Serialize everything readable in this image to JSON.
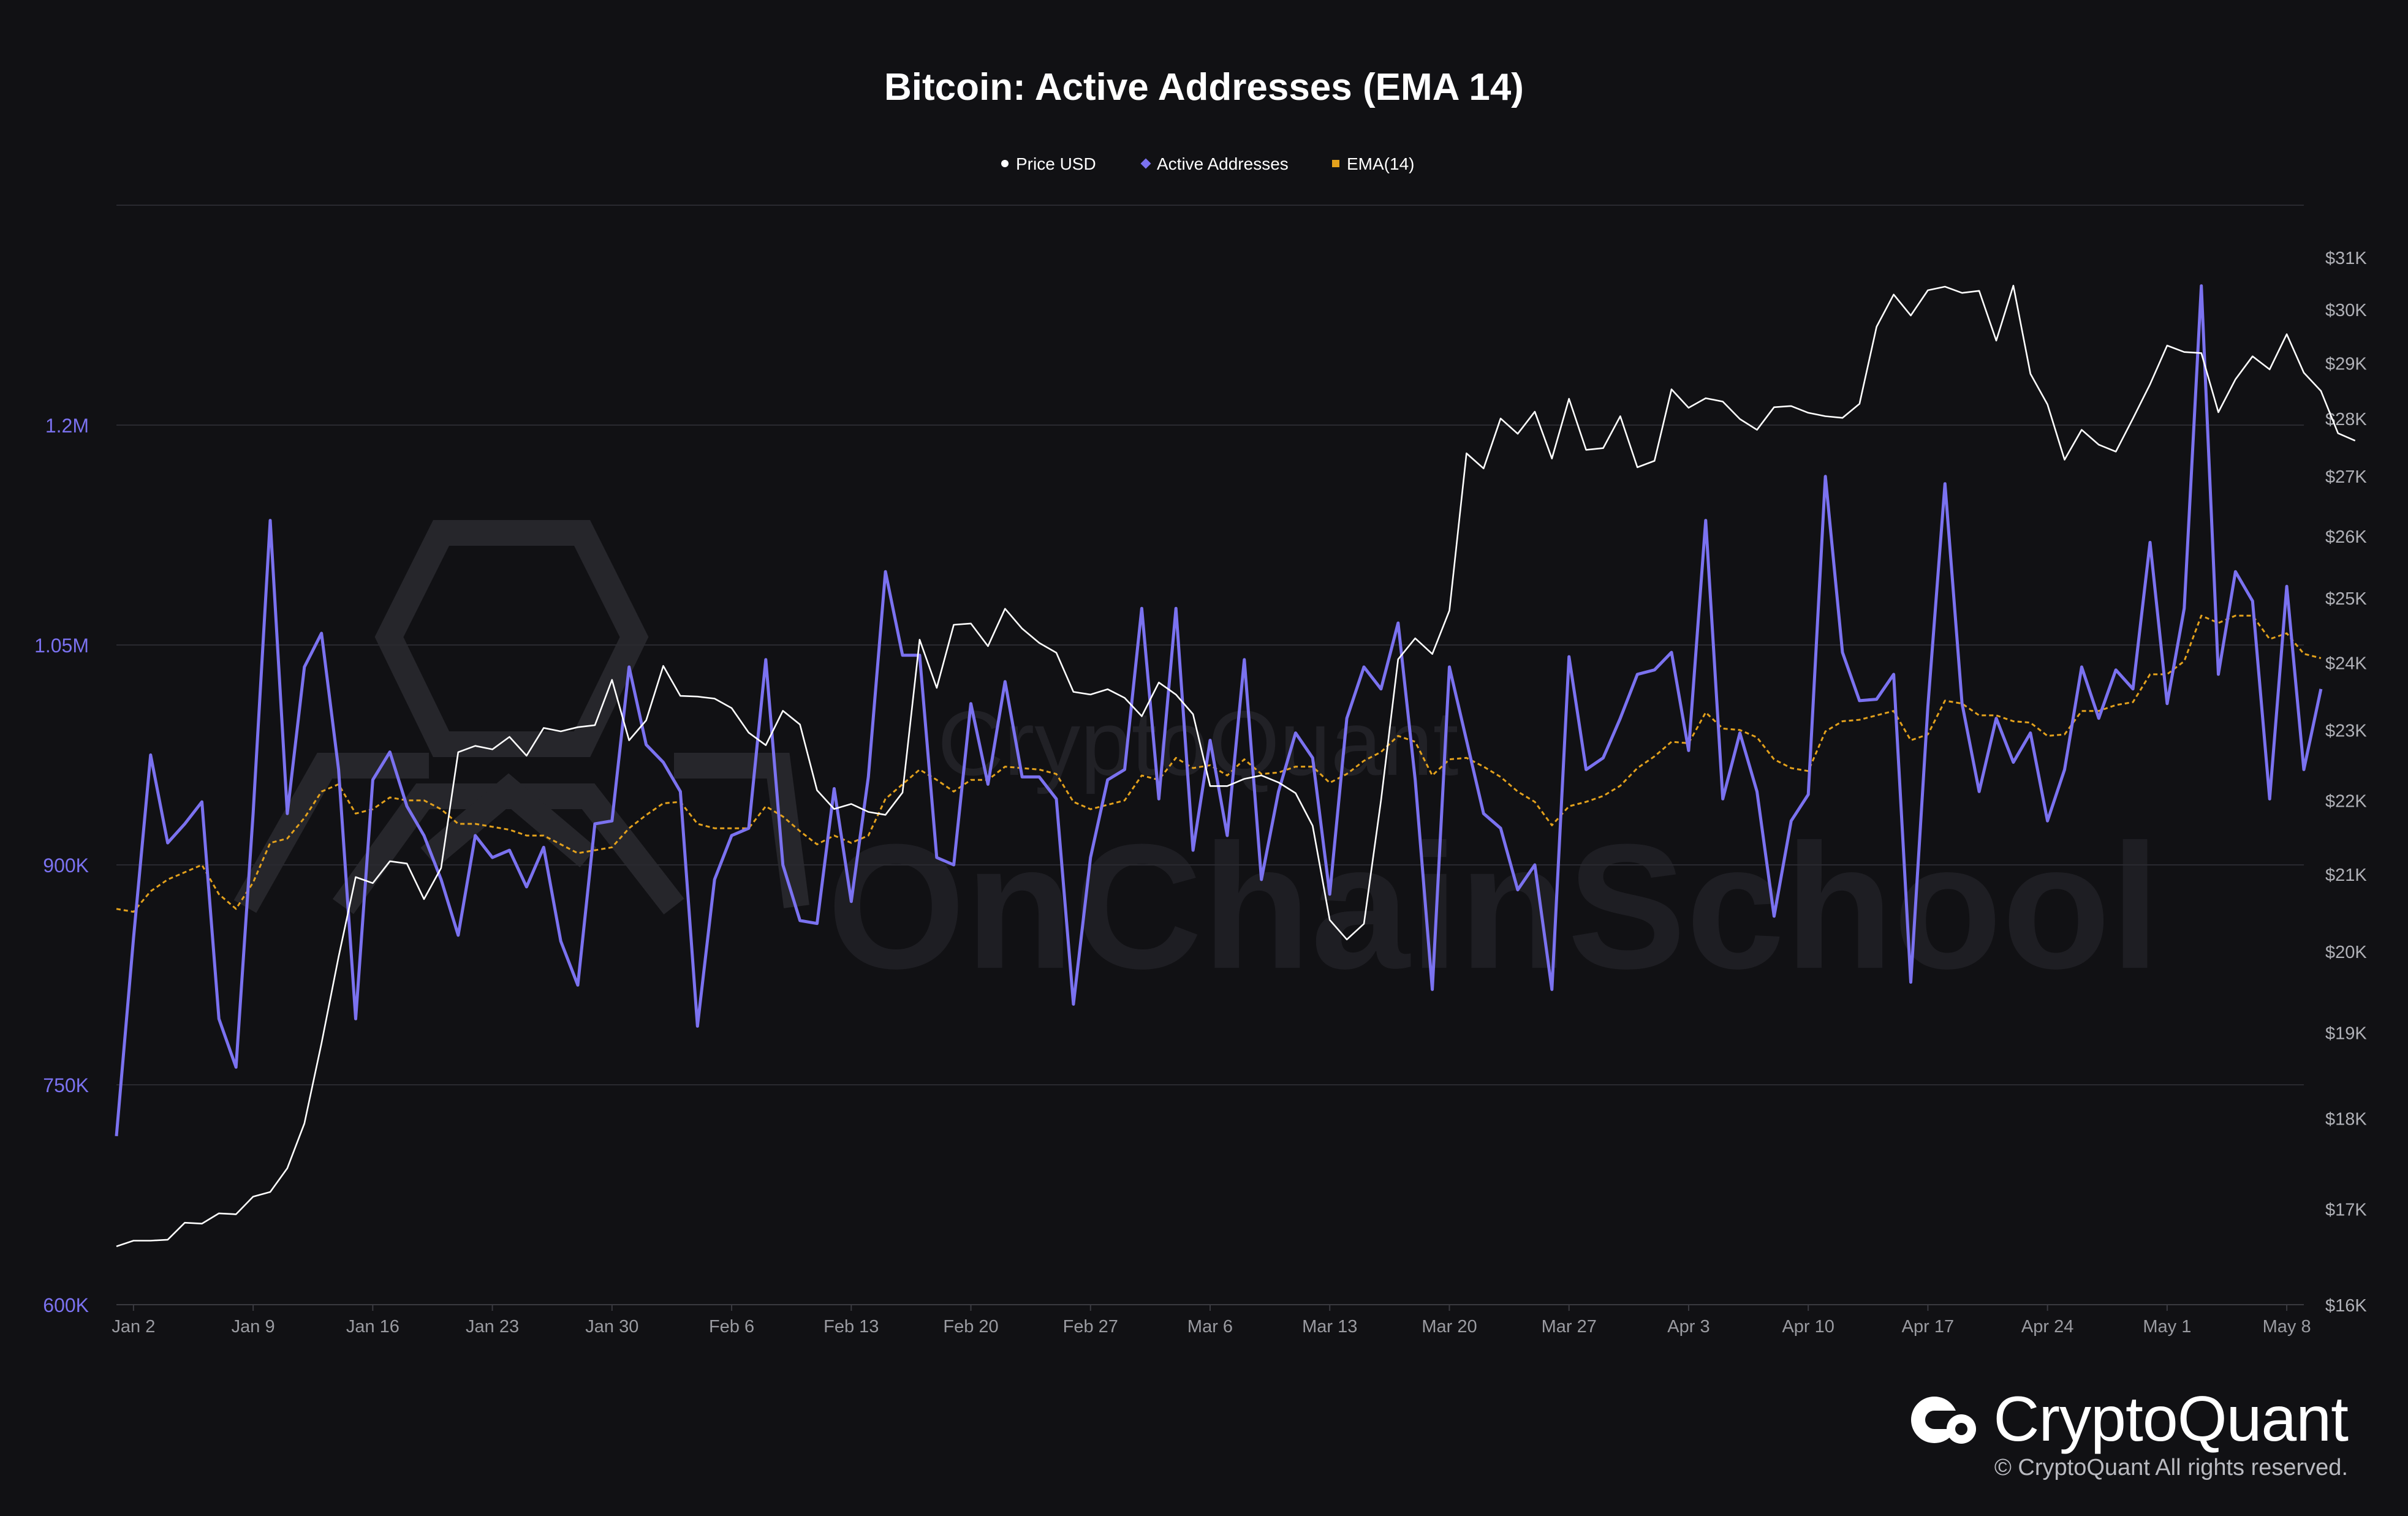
{
  "chart_data": {
    "type": "line",
    "title": "Bitcoin: Active Addresses (EMA 14)",
    "legend": {
      "placement": "top-center",
      "items": [
        {
          "label": "Price USD",
          "color": "#ffffff"
        },
        {
          "label": "Active Addresses",
          "color": "#7b72f0"
        },
        {
          "label": "EMA(14)",
          "color": "#e3a11c"
        }
      ]
    },
    "x_ticks": [
      "Jan 2",
      "Jan 9",
      "Jan 16",
      "Jan 23",
      "Jan 30",
      "Feb 6",
      "Feb 13",
      "Feb 20",
      "Feb 27",
      "Mar 6",
      "Mar 13",
      "Mar 20",
      "Mar 27",
      "Apr 3",
      "Apr 10",
      "Apr 17",
      "Apr 24",
      "May 1",
      "May 8"
    ],
    "x_range": [
      "2023-01-01",
      "2023-05-09"
    ],
    "y_left": {
      "range": [
        600000,
        1350000
      ],
      "ticks": [
        600000,
        750000,
        900000,
        1050000,
        1200000
      ],
      "tick_labels": [
        "600K",
        "750K",
        "900K",
        "1.05M",
        "1.2M"
      ],
      "color": "#7b72f0"
    },
    "y_right": {
      "scale": "log",
      "range": [
        16000,
        31000
      ],
      "ticks": [
        16000,
        17000,
        18000,
        19000,
        20000,
        21000,
        22000,
        23000,
        24000,
        25000,
        26000,
        27000,
        28000,
        29000,
        30000,
        31000
      ],
      "tick_labels": [
        "$16K",
        "$17K",
        "$18K",
        "$19K",
        "$20K",
        "$21K",
        "$22K",
        "$23K",
        "$24K",
        "$25K",
        "$26K",
        "$27K",
        "$28K",
        "$29K",
        "$30K",
        "$31K"
      ],
      "color": "#b0b1b7"
    },
    "grid": true,
    "series": [
      {
        "name": "Price USD",
        "axis": "right",
        "color": "#ffffff",
        "x_start": "2023-01-01",
        "values": [
          16600,
          16660,
          16660,
          16670,
          16850,
          16840,
          16950,
          16940,
          17130,
          17180,
          17440,
          17940,
          18870,
          19930,
          20960,
          20880,
          21170,
          21140,
          20670,
          21080,
          22680,
          22770,
          22720,
          22900,
          22630,
          23030,
          22980,
          23040,
          23070,
          23740,
          22850,
          23140,
          23950,
          23500,
          23490,
          23460,
          23320,
          22960,
          22780,
          23280,
          23080,
          22140,
          21880,
          21950,
          21840,
          21800,
          22110,
          24350,
          23620,
          24580,
          24600,
          24250,
          24830,
          24520,
          24300,
          24150,
          23560,
          23520,
          23600,
          23470,
          23200,
          23700,
          23520,
          23230,
          22200,
          22200,
          22300,
          22350,
          22250,
          22100,
          21650,
          20400,
          20150,
          20350,
          22000,
          24050,
          24370,
          24130,
          24800,
          27390,
          27130,
          28000,
          27730,
          28120,
          27300,
          28350,
          27450,
          27480,
          28040,
          27150,
          27260,
          28520,
          28190,
          28360,
          28300,
          27990,
          27800,
          28200,
          28220,
          28100,
          28040,
          28010,
          28260,
          29670,
          30280,
          29880,
          30360,
          30430,
          30310,
          30350,
          29410,
          30450,
          28800,
          28250,
          27280,
          27800,
          27540,
          27420,
          28000,
          28610,
          29320,
          29200,
          29180,
          28110,
          28700,
          29120,
          28880,
          29530,
          28820,
          28490,
          27740,
          27610
        ]
      },
      {
        "name": "Active Addresses",
        "axis": "left",
        "color": "#7b72f0",
        "x_start": "2023-01-01",
        "values": [
          715000,
          850000,
          975000,
          915000,
          928000,
          943000,
          795000,
          762000,
          935000,
          1135000,
          935000,
          1035000,
          1058000,
          965000,
          795000,
          958000,
          977000,
          940000,
          920000,
          890000,
          852000,
          920000,
          905000,
          910000,
          885000,
          912000,
          848000,
          818000,
          928000,
          930000,
          1035000,
          982000,
          970000,
          950000,
          790000,
          890000,
          920000,
          925000,
          1040000,
          900000,
          862000,
          860000,
          952000,
          875000,
          960000,
          1100000,
          1043000,
          1043000,
          905000,
          900000,
          1010000,
          955000,
          1025000,
          960000,
          960000,
          945000,
          805000,
          905000,
          958000,
          965000,
          1075000,
          945000,
          1075000,
          910000,
          985000,
          920000,
          1040000,
          890000,
          950000,
          990000,
          973000,
          880000,
          1000000,
          1035000,
          1020000,
          1065000,
          958000,
          815000,
          1035000,
          985000,
          935000,
          925000,
          883000,
          900000,
          815000,
          1042000,
          965000,
          973000,
          1000000,
          1030000,
          1033000,
          1045000,
          978000,
          1135000,
          945000,
          990000,
          950000,
          865000,
          930000,
          948000,
          1165000,
          1045000,
          1012000,
          1013000,
          1030000,
          820000,
          1008000,
          1160000,
          1010000,
          950000,
          1000000,
          970000,
          990000,
          930000,
          965000,
          1035000,
          1000000,
          1033000,
          1020000,
          1120000,
          1010000,
          1075000,
          1295000,
          1030000,
          1100000,
          1080000,
          945000,
          1090000,
          965000,
          1020000
        ]
      },
      {
        "name": "EMA(14)",
        "axis": "left",
        "color": "#e3a11c",
        "x_start": "2023-01-01",
        "values": [
          870000,
          868000,
          882000,
          890000,
          895000,
          900000,
          880000,
          870000,
          888000,
          915000,
          918000,
          932000,
          950000,
          955000,
          935000,
          938000,
          946000,
          944000,
          944000,
          938000,
          928000,
          928000,
          926000,
          924000,
          920000,
          920000,
          914000,
          908000,
          910000,
          912000,
          925000,
          934000,
          942000,
          943000,
          928000,
          925000,
          925000,
          925000,
          940000,
          933000,
          923000,
          914000,
          920000,
          915000,
          920000,
          945000,
          955000,
          965000,
          958000,
          950000,
          958000,
          958000,
          967000,
          966000,
          965000,
          962000,
          943000,
          938000,
          941000,
          944000,
          961000,
          958000,
          973000,
          966000,
          968000,
          961000,
          972000,
          962000,
          963000,
          967000,
          967000,
          956000,
          962000,
          971000,
          977000,
          988000,
          984000,
          961000,
          972000,
          973000,
          967000,
          960000,
          950000,
          943000,
          927000,
          940000,
          943000,
          947000,
          954000,
          966000,
          974000,
          984000,
          983000,
          1004000,
          993000,
          992000,
          987000,
          972000,
          966000,
          964000,
          991000,
          998000,
          999000,
          1002000,
          1005000,
          985000,
          989000,
          1012000,
          1010000,
          1002000,
          1002000,
          998000,
          997000,
          988000,
          989000,
          1005000,
          1005000,
          1009000,
          1011000,
          1030000,
          1030000,
          1039000,
          1070000,
          1065000,
          1070000,
          1070000,
          1054000,
          1058000,
          1044000,
          1041000
        ]
      }
    ]
  },
  "watermark": {
    "text": "OnChainSchool",
    "subtext": "CryptoQuant"
  },
  "footer": {
    "brand": "CryptoQuant",
    "copyright": "© CryptoQuant All rights reserved."
  }
}
